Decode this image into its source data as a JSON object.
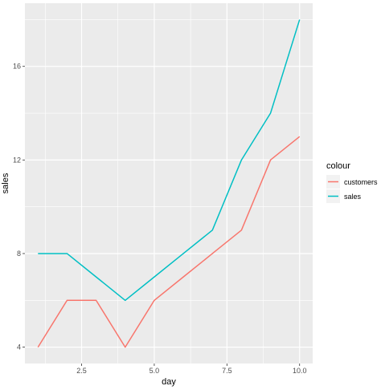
{
  "chart_data": {
    "type": "line",
    "xlabel": "day",
    "ylabel": "sales",
    "x_ticks": [
      2.5,
      5.0,
      7.5,
      10.0
    ],
    "x_tick_labels": [
      "2.5",
      "5.0",
      "7.5",
      "10.0"
    ],
    "y_ticks": [
      4,
      8,
      12,
      16
    ],
    "y_tick_labels": [
      "4",
      "8",
      "12",
      "16"
    ],
    "xlim": [
      0.55,
      10.45
    ],
    "ylim": [
      3.3,
      18.7
    ],
    "grid": true,
    "legend": {
      "title": "colour",
      "position": "right",
      "entries": [
        "customers",
        "sales"
      ]
    },
    "series": [
      {
        "name": "customers",
        "color": "#F8766D",
        "x": [
          1,
          2,
          3,
          4,
          5,
          6,
          7,
          8,
          9,
          10
        ],
        "y": [
          4,
          6,
          6,
          4,
          6,
          7,
          8,
          9,
          12,
          13
        ]
      },
      {
        "name": "sales",
        "color": "#00BFC4",
        "x": [
          1,
          2,
          3,
          4,
          5,
          6,
          7,
          8,
          9,
          10
        ],
        "y": [
          8,
          8,
          7,
          6,
          7,
          8,
          9,
          12,
          14,
          18
        ]
      }
    ],
    "panel_background": "#EBEBEB",
    "grid_color": "#FFFFFF"
  }
}
